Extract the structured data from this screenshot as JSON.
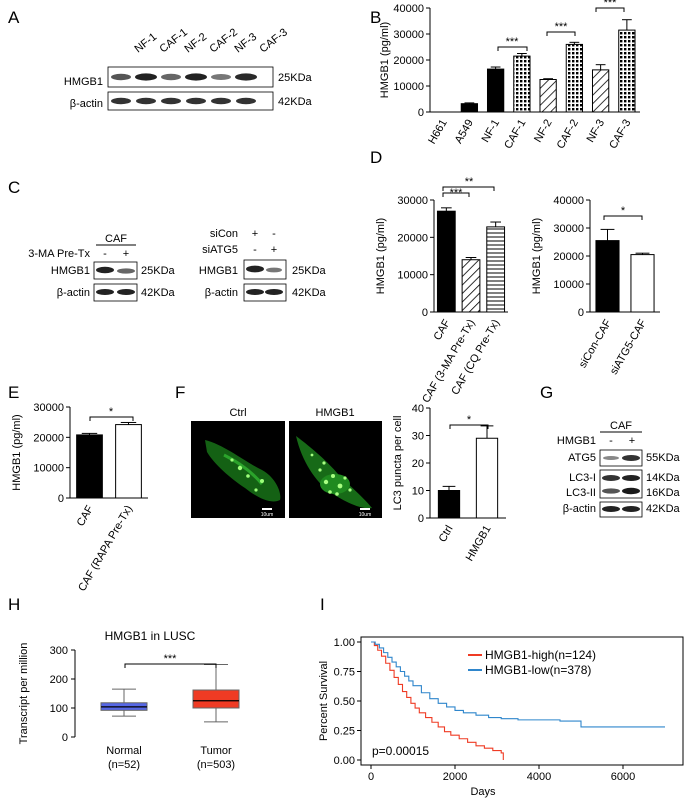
{
  "panels": {
    "A": {
      "letter": "A",
      "lanes": [
        "NF-1",
        "CAF-1",
        "NF-2",
        "CAF-2",
        "NF-3",
        "CAF-3"
      ],
      "rows": [
        {
          "name": "HMGB1",
          "size": "25KDa"
        },
        {
          "name": "β-actin",
          "size": "42KDa"
        }
      ]
    },
    "B": {
      "letter": "B",
      "significance": [
        "***",
        "***",
        "***"
      ]
    },
    "C": {
      "letter": "C",
      "left": {
        "group": "CAF",
        "treat_label": "3-MA Pre-Tx",
        "treat_signs": [
          "-",
          "+"
        ],
        "rows": [
          {
            "name": "HMGB1",
            "size": "25KDa"
          },
          {
            "name": "β-actin",
            "size": "42KDa"
          }
        ]
      },
      "right": {
        "cond": [
          {
            "label": "siCon",
            "signs": [
              "+",
              "-"
            ]
          },
          {
            "label": "siATG5",
            "signs": [
              "-",
              "+"
            ]
          }
        ],
        "rows": [
          {
            "name": "HMGB1",
            "size": "25KDa"
          },
          {
            "name": "β-actin",
            "size": "42KDa"
          }
        ]
      }
    },
    "D": {
      "letter": "D",
      "left_sig": [
        "***",
        "**"
      ],
      "right_sig": [
        "*"
      ]
    },
    "E": {
      "letter": "E",
      "sig": [
        "*"
      ]
    },
    "F": {
      "letter": "F",
      "images": [
        {
          "label": "Ctrl",
          "scale": "10um"
        },
        {
          "label": "HMGB1",
          "scale": "10um"
        }
      ],
      "sig": [
        "*"
      ]
    },
    "G": {
      "letter": "G",
      "group": "CAF",
      "treat_label": "HMGB1",
      "treat_signs": [
        "-",
        "+"
      ],
      "rows": [
        {
          "name": "ATG5",
          "size": "55KDa"
        },
        {
          "name": "LC3-I",
          "size": "14KDa"
        },
        {
          "name": "LC3-II",
          "size": "16KDa"
        },
        {
          "name": "β-actin",
          "size": "42KDa"
        }
      ]
    },
    "H": {
      "letter": "H",
      "sig": "***"
    },
    "I": {
      "letter": "I",
      "pvalue": "p=0.00015"
    }
  },
  "chart_data": [
    {
      "id": "B",
      "type": "bar",
      "categories": [
        "H661",
        "A549",
        "NF-1",
        "CAF-1",
        "NF-2",
        "CAF-2",
        "NF-3",
        "CAF-3"
      ],
      "values": [
        0,
        3200,
        16500,
        21500,
        12500,
        26000,
        16200,
        31500
      ],
      "errors": [
        0,
        300,
        800,
        1000,
        300,
        800,
        2000,
        4000
      ],
      "patterns": [
        "solid",
        "solid",
        "solid",
        "grid",
        "diagonal",
        "grid",
        "diagonal",
        "grid"
      ],
      "ylabel": "HMGB1 (pg/ml)",
      "ylim": [
        0,
        40000
      ],
      "yticks": [
        "0",
        "10000",
        "20000",
        "30000",
        "40000"
      ]
    },
    {
      "id": "D-left",
      "type": "bar",
      "categories": [
        "CAF",
        "CAF (3-MA Pre-Tx)",
        "CAF (CQ Pre-Tx)"
      ],
      "values": [
        27000,
        14000,
        22800
      ],
      "errors": [
        900,
        600,
        1300
      ],
      "patterns": [
        "black",
        "diagonal",
        "horizontal"
      ],
      "ylabel": "HMGB1  (pg/ml)",
      "ylim": [
        0,
        30000
      ],
      "yticks": [
        "0",
        "10000",
        "20000",
        "30000"
      ]
    },
    {
      "id": "D-right",
      "type": "bar",
      "categories": [
        "siCon-CAF",
        "siATG5-CAF"
      ],
      "values": [
        25500,
        20500
      ],
      "errors": [
        4000,
        500
      ],
      "patterns": [
        "black",
        "white"
      ],
      "ylabel": "HMGB1  (pg/ml)",
      "ylim": [
        0,
        40000
      ],
      "yticks": [
        "0",
        "10000",
        "20000",
        "30000",
        "40000"
      ]
    },
    {
      "id": "E",
      "type": "bar",
      "categories": [
        "CAF",
        "CAF (RAPA Pre-Tx)"
      ],
      "values": [
        20800,
        24200
      ],
      "errors": [
        500,
        700
      ],
      "patterns": [
        "black",
        "white"
      ],
      "ylabel": "HMGB1  (pg/ml)",
      "ylim": [
        0,
        30000
      ],
      "yticks": [
        "0",
        "10000",
        "20000",
        "30000"
      ]
    },
    {
      "id": "F",
      "type": "bar",
      "categories": [
        "Ctrl",
        "HMGB1"
      ],
      "values": [
        10,
        29
      ],
      "errors": [
        1.5,
        4.5
      ],
      "patterns": [
        "black",
        "white"
      ],
      "ylabel": "LC3 puncta per cell",
      "ylim": [
        0,
        40
      ],
      "yticks": [
        "0",
        "10",
        "20",
        "30",
        "40"
      ]
    },
    {
      "id": "H",
      "type": "box",
      "title": "HMGB1 in LUSC",
      "ylabel": "Transcript per million",
      "ylim": [
        0,
        300
      ],
      "yticks": [
        "0",
        "100",
        "200",
        "300"
      ],
      "groups": [
        {
          "name": "Normal",
          "n": "(n=52)",
          "min": 72,
          "q1": 92,
          "median": 104,
          "q3": 118,
          "max": 165,
          "color": "#5667e6"
        },
        {
          "name": "Tumor",
          "n": "(n=503)",
          "min": 52,
          "q1": 100,
          "median": 125,
          "q3": 162,
          "max": 250,
          "color": "#ef3b24"
        }
      ]
    },
    {
      "id": "I",
      "type": "line",
      "xlabel": "Days",
      "ylabel": "Percent Survival",
      "xlim": [
        0,
        7000
      ],
      "ylim": [
        0,
        1.0
      ],
      "xticks": [
        "0",
        "2000",
        "4000",
        "6000"
      ],
      "yticks": [
        "0.00",
        "0.25",
        "0.50",
        "0.75",
        "1.00"
      ],
      "series": [
        {
          "name": "HMGB1-high(n=124)",
          "color": "#ef3b24",
          "points": [
            [
              0,
              1.0
            ],
            [
              80,
              0.97
            ],
            [
              160,
              0.93
            ],
            [
              250,
              0.88
            ],
            [
              350,
              0.82
            ],
            [
              450,
              0.76
            ],
            [
              550,
              0.7
            ],
            [
              650,
              0.64
            ],
            [
              750,
              0.58
            ],
            [
              850,
              0.53
            ],
            [
              950,
              0.48
            ],
            [
              1050,
              0.44
            ],
            [
              1150,
              0.4
            ],
            [
              1300,
              0.36
            ],
            [
              1450,
              0.32
            ],
            [
              1600,
              0.28
            ],
            [
              1750,
              0.24
            ],
            [
              1900,
              0.21
            ],
            [
              2100,
              0.18
            ],
            [
              2300,
              0.15
            ],
            [
              2500,
              0.12
            ],
            [
              2700,
              0.1
            ],
            [
              2900,
              0.08
            ],
            [
              3100,
              0.06
            ],
            [
              3150,
              0.0
            ]
          ]
        },
        {
          "name": "HMGB1-low(n=378)",
          "color": "#2f86cc",
          "points": [
            [
              0,
              1.0
            ],
            [
              100,
              0.98
            ],
            [
              200,
              0.95
            ],
            [
              300,
              0.91
            ],
            [
              400,
              0.87
            ],
            [
              500,
              0.83
            ],
            [
              600,
              0.79
            ],
            [
              700,
              0.75
            ],
            [
              800,
              0.71
            ],
            [
              900,
              0.67
            ],
            [
              1000,
              0.63
            ],
            [
              1200,
              0.57
            ],
            [
              1400,
              0.52
            ],
            [
              1600,
              0.48
            ],
            [
              1800,
              0.45
            ],
            [
              2000,
              0.42
            ],
            [
              2200,
              0.4
            ],
            [
              2500,
              0.38
            ],
            [
              2800,
              0.36
            ],
            [
              3100,
              0.35
            ],
            [
              3500,
              0.34
            ],
            [
              4000,
              0.34
            ],
            [
              4500,
              0.33
            ],
            [
              5000,
              0.28
            ],
            [
              5500,
              0.28
            ],
            [
              6000,
              0.28
            ],
            [
              7000,
              0.28
            ]
          ]
        }
      ]
    }
  ]
}
